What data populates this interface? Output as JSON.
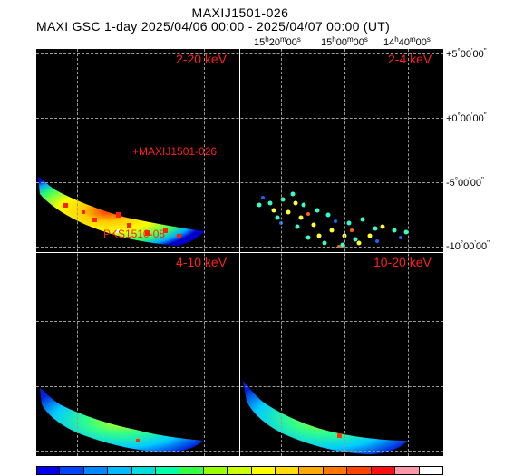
{
  "title": "MAXIJ1501-026",
  "subtitle": "MAXI GSC 1-day 2025/04/06 00:00 - 2025/04/07 00:00 (UT)",
  "ra_ticks": [
    {
      "h": "15",
      "m": "20",
      "s": "00"
    },
    {
      "h": "15",
      "m": "00",
      "s": "00"
    },
    {
      "h": "14",
      "m": "40",
      "s": "00"
    }
  ],
  "dec_ticks": [
    {
      "sign": "+5",
      "m": "00",
      "s": "00"
    },
    {
      "sign": "+0",
      "m": "00",
      "s": "00"
    },
    {
      "sign": "-5",
      "m": "00",
      "s": "00"
    },
    {
      "sign": "-10",
      "m": "00",
      "s": "00"
    }
  ],
  "panels": [
    {
      "label": "2-20 keV"
    },
    {
      "label": "2-4 keV"
    },
    {
      "label": "4-10 keV"
    },
    {
      "label": "10-20 keV"
    }
  ],
  "sources": [
    {
      "label": "+MAXIJ1501-026"
    },
    {
      "label": "PKS1510-08"
    }
  ],
  "colorbar": [
    "#0000ee",
    "#0044ff",
    "#0088ff",
    "#00bbff",
    "#00dddd",
    "#00ffaa",
    "#33ff44",
    "#99ff00",
    "#ccff00",
    "#ffff00",
    "#ffdd00",
    "#ffaa00",
    "#ff7700",
    "#ff4400",
    "#ff1111",
    "#ff99aa",
    "#ffffff"
  ]
}
